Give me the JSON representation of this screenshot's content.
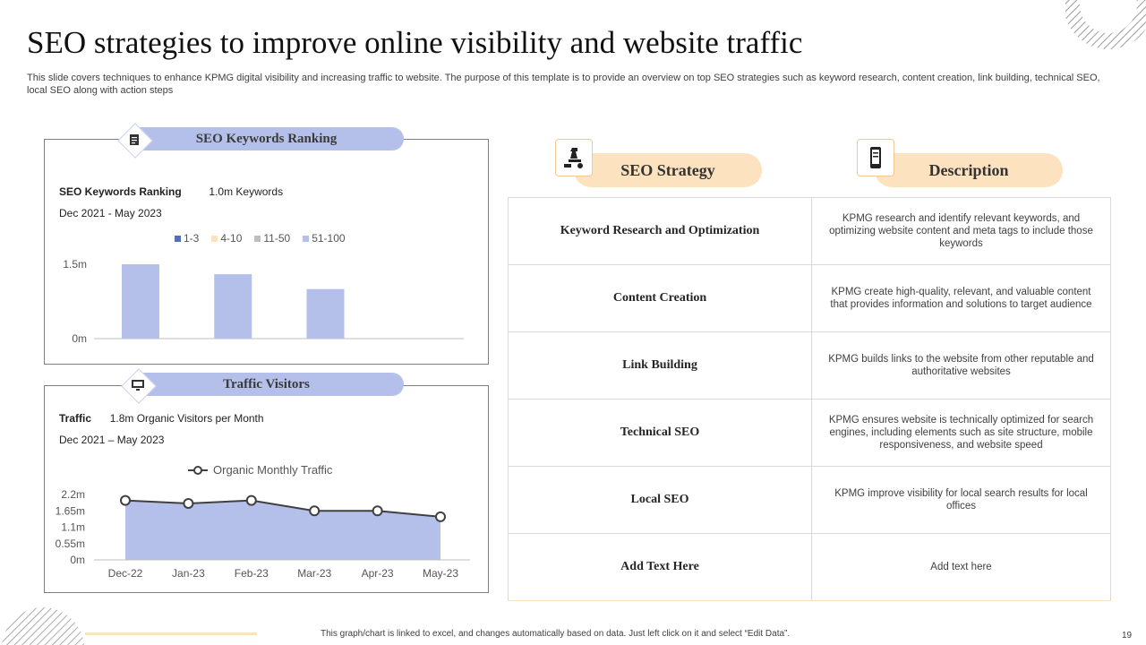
{
  "title": "SEO strategies to improve online visibility and website traffic",
  "subtitle": "This slide covers techniques to enhance KPMG digital visibility and increasing traffic to website. The purpose of this template is to provide an overview on top SEO strategies such as keyword research, content creation, link building, technical SEO, local SEO along with action steps",
  "colors": {
    "bar": "#b4c0ea",
    "tab": "#b4c0ea",
    "pill": "#fde2c0",
    "line": "#404040"
  },
  "keywords_panel": {
    "heading": "SEO Keywords Ranking",
    "icon": "clipboard-icon",
    "info_label": "SEO Keywords Ranking",
    "info_value": "1.0m Keywords",
    "date_range": "Dec 2021 - May 2023"
  },
  "traffic_panel": {
    "heading": "Traffic Visitors",
    "icon": "monitor-icon",
    "info_label": "Traffic",
    "info_value": "1.8m Organic Visitors per Month",
    "date_range": "Dec 2021 – May 2023"
  },
  "chart_data": [
    {
      "type": "bar",
      "title": "SEO Keywords Ranking",
      "legend": [
        {
          "name": "1-3",
          "color": "#4f6fc6"
        },
        {
          "name": "4-10",
          "color": "#fde2c0"
        },
        {
          "name": "11-50",
          "color": "#bfbfbf"
        },
        {
          "name": "51-100",
          "color": "#b4c0ea"
        }
      ],
      "values": [
        1.5,
        1.3,
        1.0
      ],
      "yticks": [
        "1.5m",
        "0m"
      ],
      "ylim": [
        0,
        1.5
      ]
    },
    {
      "type": "area",
      "title": "Organic Monthly Traffic",
      "categories": [
        "Dec-22",
        "Jan-23",
        "Feb-23",
        "Mar-23",
        "Apr-23",
        "May-23"
      ],
      "values": [
        2.0,
        1.9,
        2.0,
        1.65,
        1.65,
        1.45
      ],
      "yticks": [
        "2.2m",
        "1.65m",
        "1.1m",
        "0.55m",
        "0m"
      ],
      "ylim": [
        0,
        2.2
      ]
    }
  ],
  "strategy": {
    "col1": "SEO Strategy",
    "col2": "Description",
    "col1_icon": "chess-icon",
    "col2_icon": "phone-icon",
    "rows": [
      {
        "name": "Keyword Research and Optimization",
        "desc": "KPMG  research and identify relevant keywords, and optimizing website content and meta tags to include those keywords"
      },
      {
        "name": "Content Creation",
        "desc": "KPMG  create high-quality, relevant,  and valuable content that provides information and solutions to target audience"
      },
      {
        "name": "Link Building",
        "desc": "KPMG  builds links to the website from other reputable and authoritative websites"
      },
      {
        "name": "Technical SEO",
        "desc": "KPMG  ensures website is technically optimized for search engines, including elements such as site structure, mobile responsiveness, and website speed"
      },
      {
        "name": "Local SEO",
        "desc": "KPMG  improve visibility for local search results for local offices"
      },
      {
        "name": "Add Text Here",
        "desc": "Add text here"
      }
    ]
  },
  "footer_note": "This graph/chart is linked to excel, and changes automatically based on data. Just left click on it and select “Edit Data”.",
  "page_number": "19"
}
